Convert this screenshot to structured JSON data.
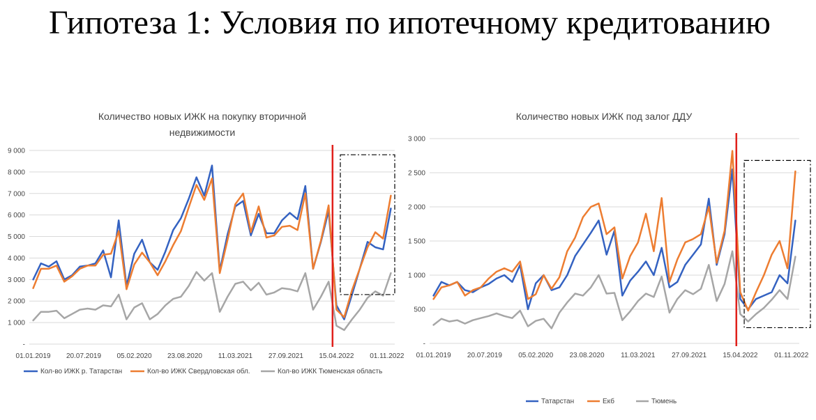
{
  "page": {
    "title": "Гипотеза 1: Условия по ипотечному кредитованию"
  },
  "chart_data": [
    {
      "type": "line",
      "title_lines": [
        "Количество новых ИЖК на покупку вторичной",
        "недвижимости"
      ],
      "ylim": [
        0,
        9000
      ],
      "yticks": [
        "-",
        "1 000",
        "2 000",
        "3 000",
        "4 000",
        "5 000",
        "6 000",
        "7 000",
        "8 000",
        "9 000"
      ],
      "xtick_labels": [
        "01.01.2019",
        "20.07.2019",
        "05.02.2020",
        "23.08.2020",
        "11.03.2021",
        "27.09.2021",
        "15.04.2022",
        "01.11.2022"
      ],
      "xtick_positions": [
        0,
        6.5,
        13,
        19.5,
        26,
        32.5,
        39,
        45.5
      ],
      "x_count": 47,
      "grid": true,
      "legend_position": "bottom",
      "marker_line": {
        "x": 38.5,
        "color": "#e0201b"
      },
      "highlight_box": {
        "x0": 39.5,
        "x1": 46.5,
        "y0": 2300,
        "y1": 8800
      },
      "series": [
        {
          "name": "Кол-во ИЖК р. Татарстан",
          "color": "#3462c1",
          "values": [
            3000,
            3750,
            3600,
            3850,
            3000,
            3200,
            3600,
            3650,
            3750,
            4350,
            3100,
            5750,
            2700,
            4200,
            4850,
            3800,
            3450,
            4300,
            5300,
            5850,
            6750,
            7750,
            6900,
            8300,
            3400,
            5100,
            6400,
            6650,
            5050,
            6050,
            5150,
            5150,
            5750,
            6100,
            5800,
            7350,
            3500,
            4750,
            6200,
            1800,
            1150,
            2300,
            3500,
            4750,
            4500,
            4400,
            6300
          ]
        },
        {
          "name": "Кол-во ИЖК Свердловская обл.",
          "color": "#ed7d31",
          "values": [
            2600,
            3500,
            3500,
            3650,
            2900,
            3150,
            3500,
            3650,
            3650,
            4150,
            4200,
            5250,
            2550,
            3700,
            4250,
            3800,
            3200,
            3850,
            4600,
            5250,
            6350,
            7400,
            6700,
            7700,
            3300,
            4850,
            6500,
            7000,
            5200,
            6400,
            4950,
            5050,
            5450,
            5500,
            5300,
            7000,
            3500,
            4800,
            6450,
            1600,
            1250,
            2500,
            3500,
            4500,
            5200,
            4900,
            6900
          ]
        },
        {
          "name": "Кол-во ИЖК Тюменская область",
          "color": "#a6a6a6",
          "values": [
            1100,
            1500,
            1500,
            1550,
            1200,
            1400,
            1600,
            1650,
            1600,
            1800,
            1750,
            2300,
            1150,
            1700,
            1900,
            1150,
            1400,
            1800,
            2100,
            2200,
            2700,
            3350,
            2950,
            3300,
            1500,
            2200,
            2800,
            2900,
            2500,
            2850,
            2300,
            2400,
            2600,
            2550,
            2450,
            3300,
            1600,
            2200,
            2900,
            850,
            650,
            1150,
            1600,
            2150,
            2450,
            2250,
            3300
          ]
        }
      ]
    },
    {
      "type": "line",
      "title_lines": [
        "Количество новых ИЖК под залог ДДУ"
      ],
      "ylim": [
        0,
        3000
      ],
      "yticks": [
        "-",
        "500",
        "1 000",
        "1 500",
        "2 000",
        "2 500",
        "3 000"
      ],
      "xtick_labels": [
        "01.01.2019",
        "20.07.2019",
        "05.02.2020",
        "23.08.2020",
        "11.03.2021",
        "27.09.2021",
        "15.04.2022",
        "01.11.2022"
      ],
      "xtick_positions": [
        0,
        6.5,
        13,
        19.5,
        26,
        32.5,
        39,
        45.5
      ],
      "x_count": 47,
      "grid": true,
      "legend_position": "bottom",
      "marker_line": {
        "x": 38.5,
        "color": "#e0201b"
      },
      "highlight_box": {
        "x0": 39.5,
        "x1": 49,
        "y0": 230,
        "y1": 2680
      },
      "series": [
        {
          "name": "Татарстан",
          "color": "#3462c1",
          "values": [
            700,
            900,
            850,
            900,
            780,
            750,
            820,
            870,
            950,
            1000,
            900,
            1150,
            500,
            880,
            1000,
            780,
            820,
            1000,
            1280,
            1450,
            1620,
            1800,
            1300,
            1650,
            700,
            920,
            1050,
            1200,
            1000,
            1400,
            820,
            900,
            1150,
            1300,
            1450,
            2120,
            1150,
            1600,
            2550,
            650,
            500,
            650,
            700,
            750,
            1000,
            880,
            1800
          ]
        },
        {
          "name": "Екб",
          "color": "#ed7d31",
          "values": [
            650,
            820,
            850,
            900,
            700,
            780,
            820,
            950,
            1050,
            1100,
            1050,
            1200,
            650,
            720,
            1000,
            800,
            970,
            1350,
            1550,
            1850,
            2000,
            2050,
            1600,
            1700,
            950,
            1280,
            1480,
            1900,
            1350,
            2130,
            900,
            1230,
            1480,
            1530,
            1600,
            2000,
            1180,
            1650,
            2820,
            750,
            480,
            750,
            1000,
            1300,
            1500,
            1100,
            2520
          ]
        },
        {
          "name": "Тюмень",
          "color": "#a6a6a6",
          "values": [
            270,
            360,
            320,
            340,
            290,
            340,
            370,
            400,
            440,
            400,
            370,
            480,
            250,
            330,
            360,
            220,
            450,
            600,
            730,
            700,
            820,
            1000,
            730,
            740,
            340,
            470,
            620,
            730,
            680,
            980,
            450,
            650,
            780,
            720,
            800,
            1150,
            620,
            870,
            1350,
            430,
            320,
            430,
            520,
            640,
            780,
            650,
            1270
          ]
        }
      ]
    }
  ]
}
